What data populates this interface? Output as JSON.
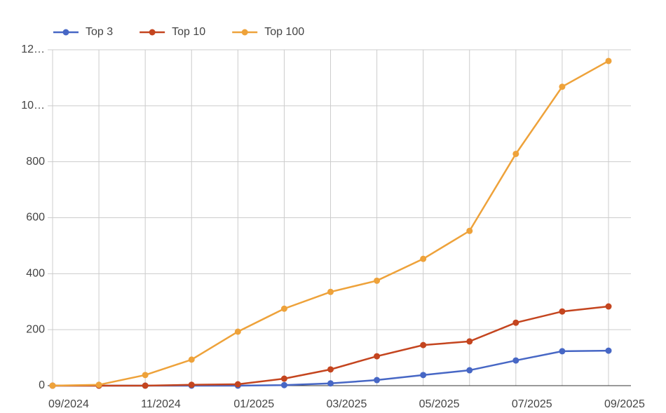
{
  "chart_data": {
    "type": "line",
    "categories": [
      "09/2024",
      null,
      "11/2024",
      null,
      "01/2025",
      null,
      "03/2025",
      null,
      "05/2025",
      null,
      "07/2025",
      null,
      "09/2025"
    ],
    "series": [
      {
        "name": "Top 3",
        "color": "#4767c5",
        "values": [
          0,
          0,
          0,
          0,
          0,
          2,
          8,
          20,
          38,
          55,
          90,
          123,
          125
        ]
      },
      {
        "name": "Top 10",
        "color": "#c4451f",
        "values": [
          0,
          0,
          0,
          3,
          5,
          25,
          58,
          105,
          145,
          158,
          225,
          265,
          283
        ]
      },
      {
        "name": "Top 100",
        "color": "#eea23a",
        "values": [
          0,
          3,
          38,
          93,
          193,
          275,
          335,
          375,
          453,
          553,
          828,
          1068,
          1160
        ]
      }
    ],
    "ylim": [
      0,
      1200
    ],
    "yticks": [
      0,
      200,
      400,
      600,
      800,
      {
        "value": 1000,
        "label": "10…"
      },
      {
        "value": 1200,
        "label": "12…"
      }
    ],
    "grid": true,
    "legend": "top"
  }
}
